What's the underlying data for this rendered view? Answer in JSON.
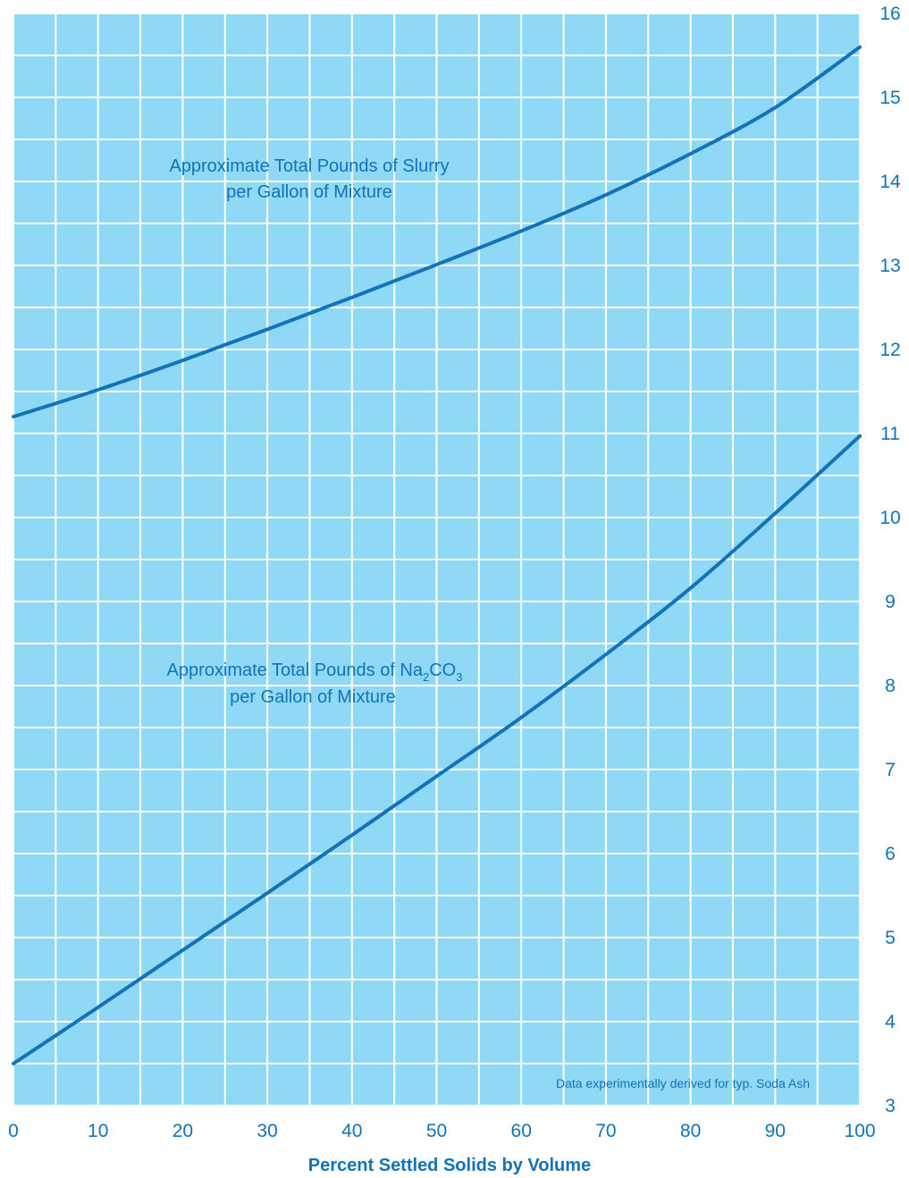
{
  "chart_data": {
    "type": "line",
    "xlabel": "Percent Settled Solids by Volume",
    "ylabel": "",
    "xlim": [
      0,
      100
    ],
    "ylim": [
      3,
      16
    ],
    "x_ticks": [
      "0",
      "10",
      "20",
      "30",
      "40",
      "50",
      "60",
      "70",
      "80",
      "90",
      "100"
    ],
    "y_ticks": [
      "3",
      "4",
      "5",
      "6",
      "7",
      "8",
      "9",
      "10",
      "11",
      "12",
      "13",
      "14",
      "15",
      "16"
    ],
    "grid": true,
    "y_axis_side": "right",
    "x": [
      0,
      10,
      20,
      30,
      40,
      50,
      60,
      70,
      80,
      90,
      100
    ],
    "series": [
      {
        "values": [
          11.2,
          11.52,
          11.87,
          12.24,
          12.62,
          13.01,
          13.41,
          13.84,
          14.33,
          14.88,
          15.6
        ]
      },
      {
        "values": [
          3.5,
          4.17,
          4.85,
          5.53,
          6.22,
          6.92,
          7.62,
          8.37,
          9.16,
          10.05,
          10.97
        ]
      }
    ],
    "annotations": {
      "slurry_line1": "Approximate Total Pounds of Slurry",
      "slurry_line2": "per Gallon of Mixture",
      "soda_line1_prefix": "Approximate Total Pounds of Na",
      "soda_sub1": "2",
      "soda_mid": "CO",
      "soda_sub2": "3",
      "soda_line2": "per Gallon of Mixture",
      "note": "Data experimentally derived for typ. Soda Ash"
    },
    "colors": {
      "background": "#8fd8f6",
      "grid": "#ffffff",
      "line": "#1273b8",
      "text": "#1273b8"
    }
  }
}
